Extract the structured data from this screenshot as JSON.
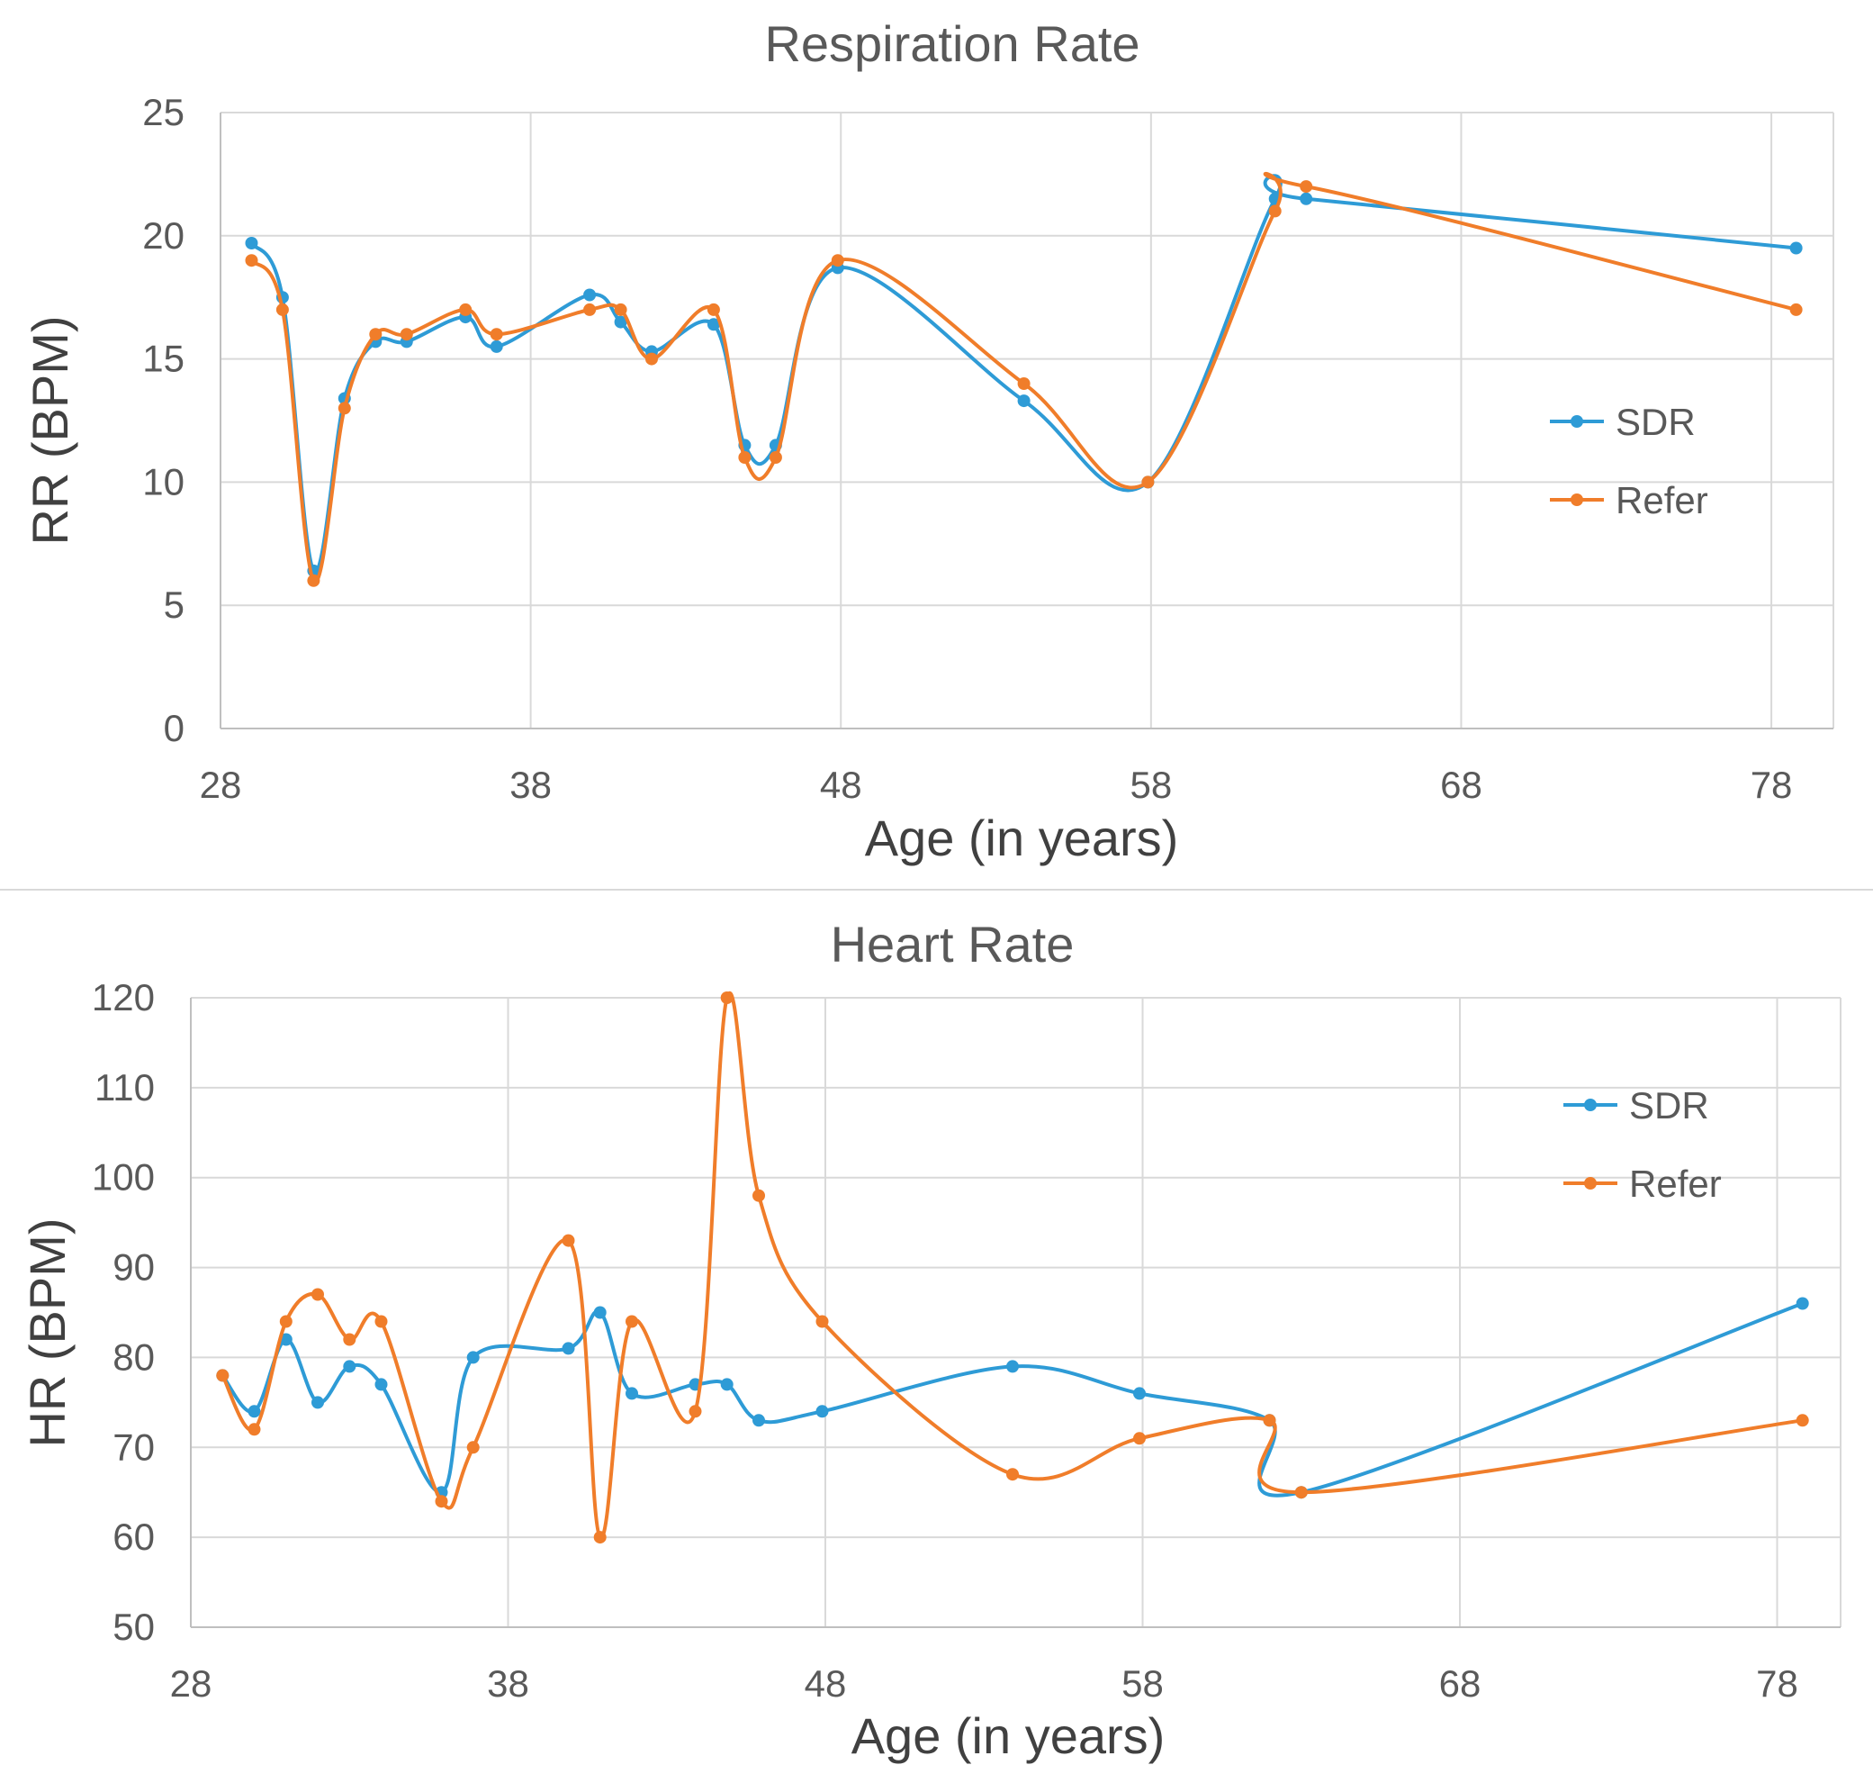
{
  "chart_data": [
    {
      "type": "line",
      "title": "Respiration Rate",
      "xlabel": "Age (in years)",
      "ylabel": "RR (BPM)",
      "xlim": [
        28,
        80
      ],
      "ylim": [
        0,
        25
      ],
      "xticks": [
        28,
        38,
        48,
        58,
        68,
        78
      ],
      "yticks": [
        0,
        5,
        10,
        15,
        20,
        25
      ],
      "grid": true,
      "legend_position": "right",
      "series": [
        {
          "name": "SDR",
          "color": "#2e9bd6",
          "x": [
            29,
            30,
            31,
            32,
            33,
            34,
            35.9,
            36.9,
            39.9,
            40.9,
            41.9,
            43.9,
            44.9,
            45.9,
            47.9,
            53.9,
            57.9,
            62,
            63,
            78.8
          ],
          "y": [
            19.7,
            17.5,
            6.4,
            13.4,
            15.7,
            15.7,
            16.7,
            15.5,
            17.6,
            16.5,
            15.3,
            16.4,
            11.5,
            11.5,
            18.7,
            13.3,
            10,
            21.5,
            21.5,
            19.5
          ]
        },
        {
          "name": "Refer",
          "color": "#f07d2a",
          "x": [
            29,
            30,
            31,
            32,
            33,
            34,
            35.9,
            36.9,
            39.9,
            40.9,
            41.9,
            43.9,
            44.9,
            45.9,
            47.9,
            53.9,
            57.9,
            62,
            63,
            78.8
          ],
          "y": [
            19,
            17,
            6,
            13,
            16,
            16,
            17,
            16,
            17,
            17,
            15,
            17,
            11,
            11,
            19,
            14,
            10,
            21,
            22,
            17
          ]
        }
      ]
    },
    {
      "type": "line",
      "title": "Heart Rate",
      "xlabel": "Age (in years)",
      "ylabel": "HR (BPM)",
      "xlim": [
        28,
        80
      ],
      "ylim": [
        50,
        120
      ],
      "xticks": [
        28,
        38,
        48,
        58,
        68,
        78
      ],
      "yticks": [
        50,
        60,
        70,
        80,
        90,
        100,
        110,
        120
      ],
      "grid": true,
      "legend_position": "top-right",
      "series": [
        {
          "name": "SDR",
          "color": "#2e9bd6",
          "x": [
            29,
            30,
            31,
            32,
            33,
            34,
            35.9,
            36.9,
            39.9,
            40.9,
            41.9,
            43.9,
            44.9,
            45.9,
            47.9,
            53.9,
            57.9,
            62,
            63,
            78.8
          ],
          "y": [
            78,
            74,
            82,
            75,
            79,
            77,
            65,
            80,
            81,
            85,
            76,
            77,
            77,
            73,
            74,
            79,
            76,
            73,
            65,
            86
          ]
        },
        {
          "name": "Refer",
          "color": "#f07d2a",
          "x": [
            29,
            30,
            31,
            32,
            33,
            34,
            35.9,
            36.9,
            39.9,
            40.9,
            41.9,
            43.9,
            44.9,
            45.9,
            47.9,
            53.9,
            57.9,
            62,
            63,
            78.8
          ],
          "y": [
            78,
            72,
            84,
            87,
            82,
            84,
            64,
            70,
            93,
            60,
            84,
            74,
            120,
            98,
            84,
            67,
            71,
            73,
            65,
            73
          ]
        }
      ]
    }
  ]
}
